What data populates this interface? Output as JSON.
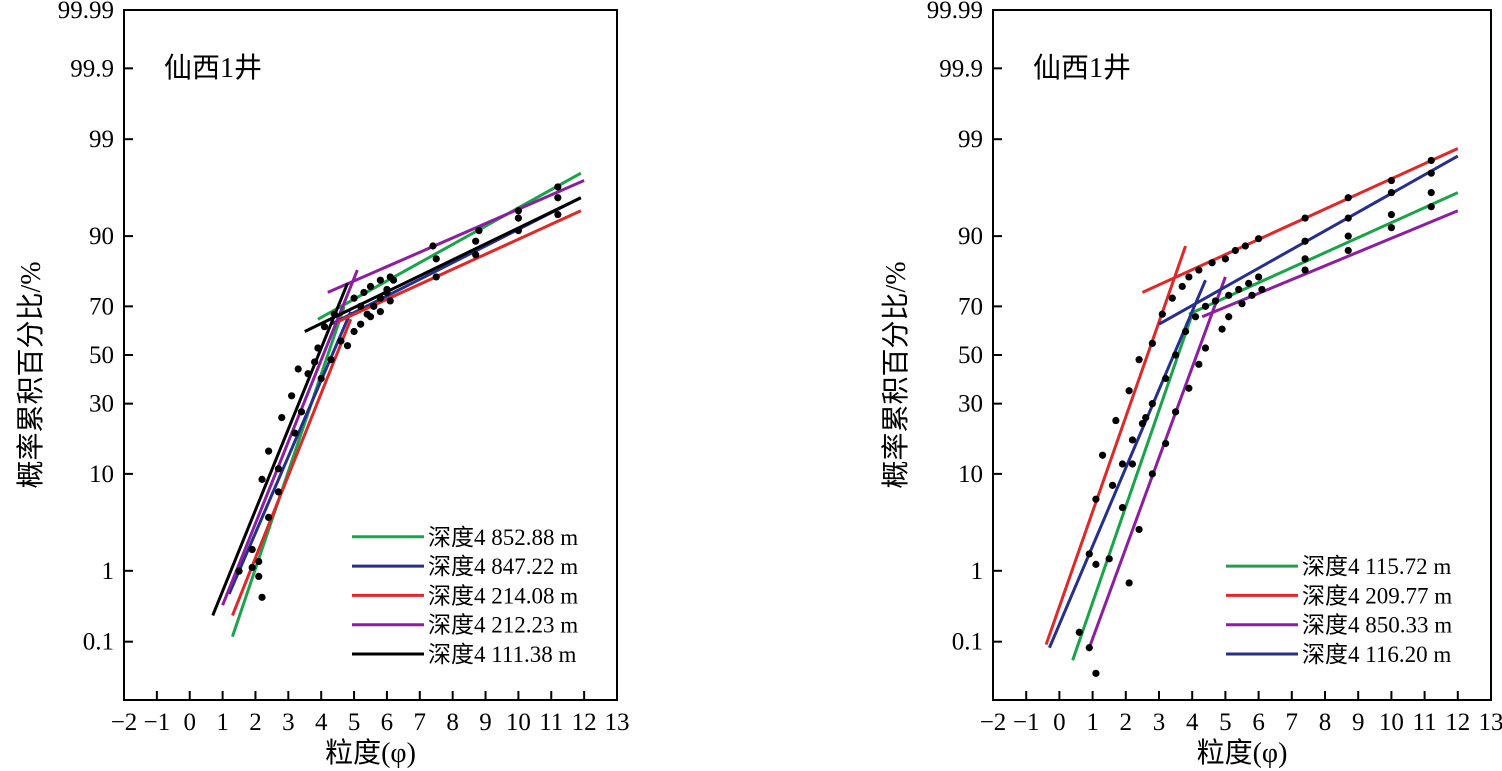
{
  "chart_data": [
    {
      "type": "scatter",
      "title": "仙西1井",
      "xlabel": "粒度(φ)",
      "ylabel": "概率累积百分比/%",
      "x_ticks": [
        -2,
        -1,
        0,
        1,
        2,
        3,
        4,
        5,
        6,
        7,
        8,
        9,
        10,
        11,
        12,
        13
      ],
      "x_tick_labels": [
        "−2",
        "−1",
        "0",
        "1",
        "2",
        "3",
        "4",
        "5",
        "6",
        "7",
        "8",
        "9",
        "10",
        "11",
        "12",
        "13"
      ],
      "y_ticks": [
        0.1,
        1,
        10,
        30,
        50,
        70,
        90,
        99,
        99.9,
        99.99
      ],
      "y_tick_labels": [
        "0.1",
        "1",
        "10",
        "30",
        "50",
        "70",
        "90",
        "99",
        "99.9",
        "99.99"
      ],
      "xlim": [
        -2,
        13
      ],
      "ylim": [
        0.01,
        99.99
      ],
      "y_scale": "probability",
      "legend_position": "bottom-right",
      "series": [
        {
          "name": "深度4 852.88 m",
          "color": "#1aa34a",
          "segments": [
            [
              [
                1.3,
                0.12
              ],
              [
                4.7,
                70
              ]
            ],
            [
              [
                3.9,
                65
              ],
              [
                11.9,
                97.5
              ]
            ]
          ]
        },
        {
          "name": "深度4 847.22 m",
          "color": "#262f8c",
          "segments": [
            [
              [
                1.2,
                0.5
              ],
              [
                4.9,
                68
              ]
            ],
            [
              [
                4.3,
                63
              ],
              [
                11.9,
                95.5
              ]
            ]
          ]
        },
        {
          "name": "深度4 214.08 m",
          "color": "#e02828",
          "segments": [
            [
              [
                1.3,
                0.25
              ],
              [
                4.9,
                65
              ]
            ],
            [
              [
                4.5,
                64
              ],
              [
                11.9,
                94
              ]
            ]
          ]
        },
        {
          "name": "深度4 212.23 m",
          "color": "#8c1fa0",
          "segments": [
            [
              [
                1.0,
                0.35
              ],
              [
                5.1,
                82
              ]
            ],
            [
              [
                4.2,
                75
              ],
              [
                12.0,
                97
              ]
            ]
          ]
        },
        {
          "name": "深度4 111.38 m",
          "color": "#000000",
          "segments": [
            [
              [
                0.7,
                0.25
              ],
              [
                4.8,
                78
              ]
            ],
            [
              [
                3.5,
                60
              ],
              [
                11.9,
                95.5
              ]
            ]
          ]
        }
      ],
      "points": [
        [
          1.5,
          0.99
        ],
        [
          1.9,
          1.1
        ],
        [
          2.1,
          1.3
        ],
        [
          2.1,
          0.85
        ],
        [
          2.2,
          0.45
        ],
        [
          1.9,
          1.8
        ],
        [
          2.2,
          9
        ],
        [
          2.4,
          15
        ],
        [
          2.8,
          25
        ],
        [
          2.7,
          11
        ],
        [
          2.4,
          4
        ],
        [
          2.7,
          7
        ],
        [
          3.1,
          33
        ],
        [
          3.3,
          44
        ],
        [
          3.6,
          42
        ],
        [
          3.2,
          20
        ],
        [
          3.4,
          27
        ],
        [
          3.8,
          47
        ],
        [
          3.9,
          53
        ],
        [
          4.0,
          40
        ],
        [
          4.3,
          48
        ],
        [
          4.1,
          62
        ],
        [
          4.4,
          67
        ],
        [
          4.6,
          56
        ],
        [
          4.8,
          54
        ],
        [
          5.0,
          60
        ],
        [
          5.2,
          63
        ],
        [
          5.4,
          67
        ],
        [
          5.6,
          70
        ],
        [
          5.8,
          73
        ],
        [
          6.0,
          75
        ],
        [
          6.1,
          72
        ],
        [
          5.0,
          73
        ],
        [
          5.3,
          75
        ],
        [
          5.5,
          77
        ],
        [
          5.8,
          79
        ],
        [
          6.1,
          80
        ],
        [
          5.2,
          70
        ],
        [
          5.5,
          66
        ],
        [
          5.8,
          68
        ],
        [
          6.0,
          76
        ],
        [
          6.2,
          79
        ],
        [
          7.5,
          85
        ],
        [
          7.5,
          80
        ],
        [
          8.7,
          89
        ],
        [
          8.7,
          86
        ],
        [
          10.0,
          94
        ],
        [
          10.0,
          91
        ],
        [
          11.2,
          96.5
        ],
        [
          11.2,
          95.5
        ],
        [
          11.2,
          93.5
        ],
        [
          7.4,
          88
        ],
        [
          8.8,
          91
        ],
        [
          10.0,
          93
        ]
      ]
    },
    {
      "type": "scatter",
      "title": "仙西1井",
      "xlabel": "粒度(φ)",
      "ylabel": "概率累积百分比/%",
      "x_ticks": [
        -2,
        -1,
        0,
        1,
        2,
        3,
        4,
        5,
        6,
        7,
        8,
        9,
        10,
        11,
        12,
        13
      ],
      "x_tick_labels": [
        "−2",
        "−1",
        "0",
        "1",
        "2",
        "3",
        "4",
        "5",
        "6",
        "7",
        "8",
        "9",
        "10",
        "11",
        "12",
        "13"
      ],
      "y_ticks": [
        0.1,
        1,
        10,
        30,
        50,
        70,
        90,
        99,
        99.9,
        99.99
      ],
      "y_tick_labels": [
        "0.1",
        "1",
        "10",
        "30",
        "50",
        "70",
        "90",
        "99",
        "99.9",
        "99.99"
      ],
      "xlim": [
        -2,
        13
      ],
      "ylim": [
        0.01,
        99.99
      ],
      "y_scale": "probability",
      "legend_position": "bottom-right",
      "series": [
        {
          "name": "深度4 115.72 m",
          "color": "#1aa34a",
          "segments": [
            [
              [
                0.4,
                0.05
              ],
              [
                4.0,
                67
              ]
            ],
            [
              [
                3.9,
                67
              ],
              [
                12.0,
                96
              ]
            ]
          ]
        },
        {
          "name": "深度4 209.77 m",
          "color": "#e02828",
          "segments": [
            [
              [
                -0.4,
                0.09
              ],
              [
                3.8,
                88
              ]
            ],
            [
              [
                2.5,
                75
              ],
              [
                12.0,
                98.7
              ]
            ]
          ]
        },
        {
          "name": "深度4 850.33 m",
          "color": "#8c1fa0",
          "segments": [
            [
              [
                0.9,
                0.08
              ],
              [
                5.0,
                80
              ]
            ],
            [
              [
                4.3,
                66
              ],
              [
                12.0,
                94
              ]
            ]
          ]
        },
        {
          "name": "深度4 116.20 m",
          "color": "#262f8c",
          "segments": [
            [
              [
                -0.3,
                0.08
              ],
              [
                4.4,
                79
              ]
            ],
            [
              [
                3.0,
                63
              ],
              [
                12.0,
                98.4
              ]
            ]
          ]
        }
      ],
      "points": [
        [
          0.6,
          0.14
        ],
        [
          0.9,
          1.6
        ],
        [
          1.1,
          6
        ],
        [
          1.3,
          14
        ],
        [
          1.7,
          24
        ],
        [
          2.1,
          35
        ],
        [
          2.4,
          48
        ],
        [
          2.8,
          55
        ],
        [
          3.1,
          67
        ],
        [
          3.4,
          73
        ],
        [
          3.7,
          77
        ],
        [
          3.9,
          80
        ],
        [
          4.2,
          82
        ],
        [
          4.6,
          84
        ],
        [
          5.0,
          85
        ],
        [
          5.3,
          87
        ],
        [
          5.6,
          88
        ],
        [
          6.0,
          89.5
        ],
        [
          1.1,
          1.2
        ],
        [
          1.5,
          1.4
        ],
        [
          1.9,
          5
        ],
        [
          2.2,
          12
        ],
        [
          2.5,
          23
        ],
        [
          2.8,
          30
        ],
        [
          3.2,
          40
        ],
        [
          3.5,
          50
        ],
        [
          3.8,
          60
        ],
        [
          4.1,
          66
        ],
        [
          4.4,
          70
        ],
        [
          4.7,
          72
        ],
        [
          5.1,
          74
        ],
        [
          5.4,
          76
        ],
        [
          5.7,
          78
        ],
        [
          6.0,
          80
        ],
        [
          2.1,
          0.7
        ],
        [
          2.4,
          3
        ],
        [
          2.8,
          10
        ],
        [
          3.2,
          17
        ],
        [
          3.5,
          27
        ],
        [
          3.9,
          36
        ],
        [
          4.2,
          46
        ],
        [
          4.4,
          53
        ],
        [
          4.9,
          61
        ],
        [
          5.1,
          66
        ],
        [
          5.5,
          71
        ],
        [
          5.8,
          74
        ],
        [
          6.1,
          76
        ],
        [
          0.9,
          0.08
        ],
        [
          1.1,
          0.03
        ],
        [
          1.6,
          8
        ],
        [
          1.9,
          12
        ],
        [
          2.2,
          18
        ],
        [
          2.6,
          25
        ],
        [
          7.4,
          93
        ],
        [
          7.4,
          89
        ],
        [
          7.4,
          85
        ],
        [
          7.4,
          82
        ],
        [
          8.7,
          95.5
        ],
        [
          8.7,
          93
        ],
        [
          8.7,
          90
        ],
        [
          8.7,
          87
        ],
        [
          10.0,
          97
        ],
        [
          10.0,
          96
        ],
        [
          10.0,
          93.5
        ],
        [
          10.0,
          91.5
        ],
        [
          11.2,
          98.2
        ],
        [
          11.2,
          97.5
        ],
        [
          11.2,
          96
        ],
        [
          11.2,
          94.5
        ]
      ]
    }
  ]
}
